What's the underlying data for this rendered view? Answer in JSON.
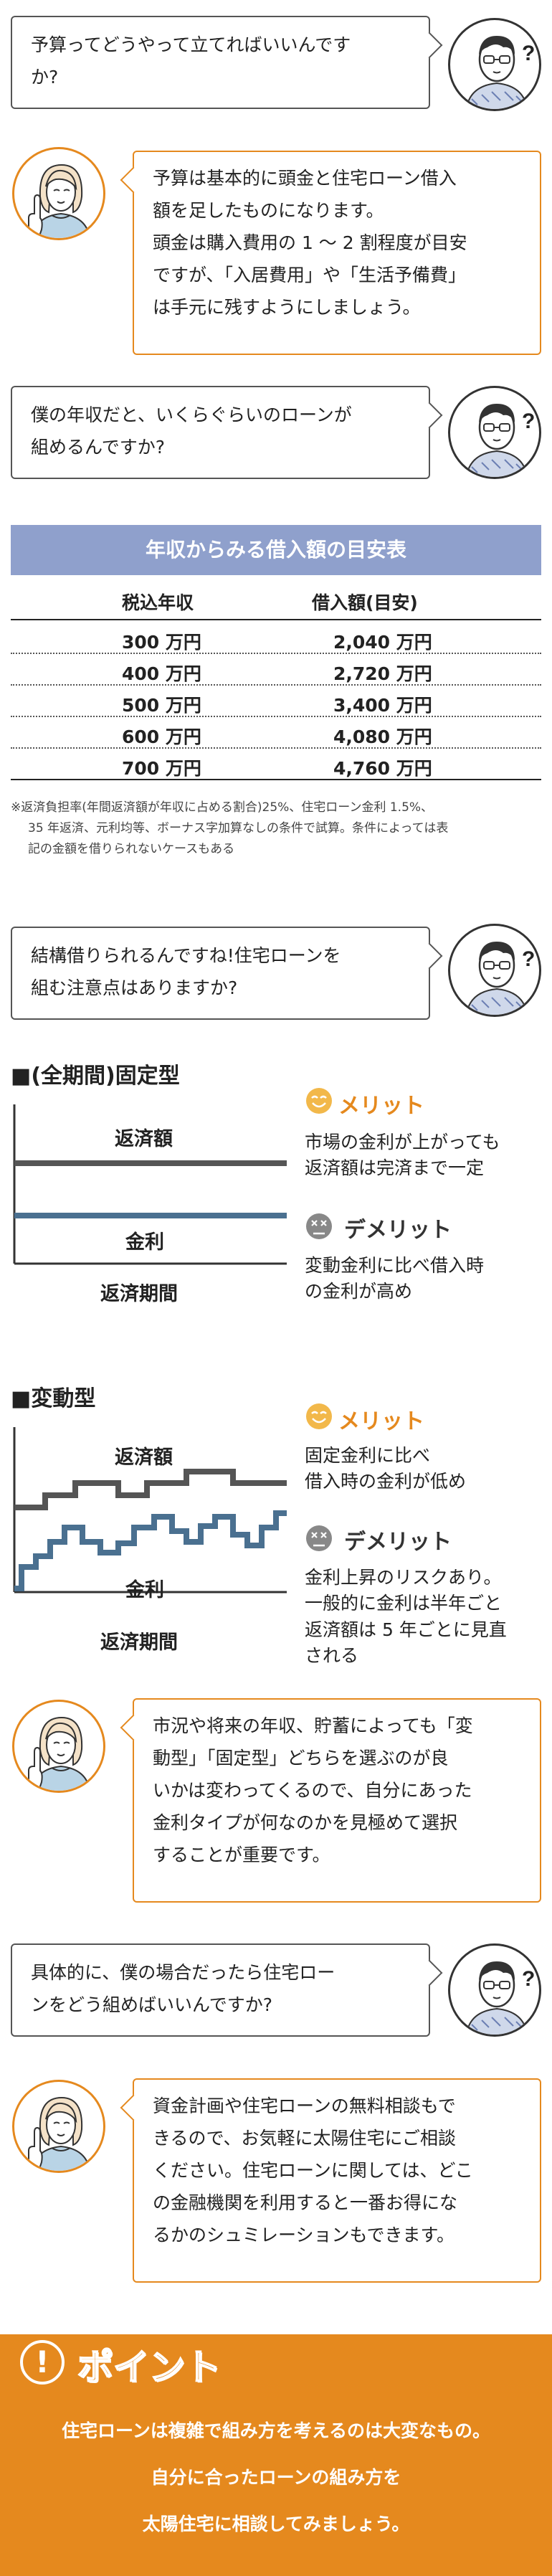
{
  "dialogue": {
    "q1": [
      "予算ってどうやって立てればいいんです",
      "か?"
    ],
    "a1": [
      "予算は基本的に頭金と住宅ローン借入",
      "額を足したものになります。",
      "頭金は購入費用の 1 〜 2 割程度が目安",
      "ですが、「入居費用」や「生活予備費」",
      "は手元に残すようにしましょう。"
    ],
    "q2": [
      "僕の年収だと、いくらぐらいのローンが",
      "組めるんですか?"
    ],
    "q3": [
      "結構借りられるんですね!住宅ローンを",
      "組む注意点はありますか?"
    ],
    "a2": [
      "市況や将来の年収、貯蓄によっても「変",
      "動型」「固定型」どちらを選ぶのが良",
      "いかは変わってくるので、自分にあった",
      "金利タイプが何なのかを見極めて選択",
      "することが重要です。"
    ],
    "q4": [
      "具体的に、僕の場合だったら住宅ロー",
      "ンをどう組めばいいんですか?"
    ],
    "a3": [
      "資金計画や住宅ローンの無料相談もで",
      "きるので、お気軽に太陽住宅にご相談",
      "ください。住宅ローンに関しては、どこ",
      "の金融機関を利用すると一番お得にな",
      "るかのシュミレーションもできます。"
    ]
  },
  "table": {
    "title": "年収からみる借入額の目安表",
    "col1": "税込年収",
    "col2": "借入額(目安)",
    "rows": [
      {
        "income": "300 万円",
        "loan": "2,040 万円"
      },
      {
        "income": "400 万円",
        "loan": "2,720 万円"
      },
      {
        "income": "500 万円",
        "loan": "3,400 万円"
      },
      {
        "income": "600 万円",
        "loan": "4,080 万円"
      },
      {
        "income": "700 万円",
        "loan": "4,760 万円"
      }
    ],
    "note": [
      "※返済負担率(年間返済額が年収に占める割合)25%、住宅ローン金利 1.5%、",
      "35 年返済、元利均等、ボーナス字加算なしの条件で試算。条件によっては表",
      "記の金額を借りられないケースもある"
    ]
  },
  "fixed": {
    "title": "■(全期間)固定型",
    "repay_label": "返済額",
    "rate_label": "金利",
    "x_label": "返済期間",
    "merit_title": "メリット",
    "merit_desc": [
      "市場の金利が上がっても",
      "返済額は完済まで一定"
    ],
    "demerit_title": "デメリット",
    "demerit_desc": [
      "変動金利に比べ借入時",
      "の金利が高め"
    ]
  },
  "variable": {
    "title": "■変動型",
    "repay_label": "返済額",
    "rate_label": "金利",
    "x_label": "返済期間",
    "merit_title": "メリット",
    "merit_desc": [
      "固定金利に比べ",
      "借入時の金利が低め"
    ],
    "demerit_title": "デメリット",
    "demerit_desc": [
      "金利上昇のリスクあり。",
      "一般的に金利は半年ごと",
      "返済額は 5 年ごとに見直",
      "される"
    ]
  },
  "point": {
    "title": "ポイント",
    "icon": "!",
    "lines": [
      "住宅ローンは複雑で組み方を考えるのは大変なもの。",
      "自分に合ったローンの組み方を",
      "太陽住宅に相談してみましょう。"
    ]
  },
  "colors": {
    "accent": "#e5891e",
    "table_head": "#8fa0cc",
    "line_blue": "#4a7090"
  }
}
